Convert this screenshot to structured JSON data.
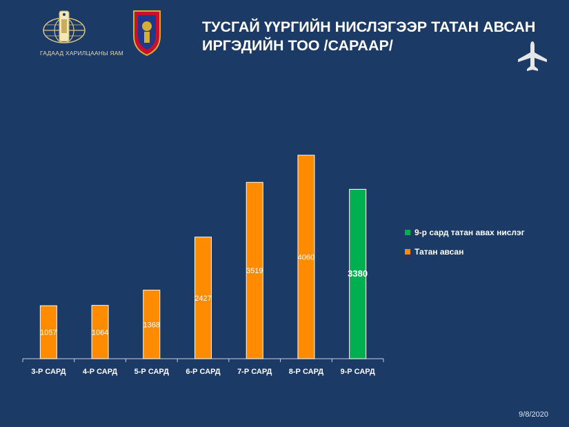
{
  "header": {
    "title_line1": "ТУСГАЙ ҮҮРГИЙН НИСЛЭГЭЭР ТАТАН АВСАН",
    "title_line2": "ИРГЭДИЙН ТОО /САРААР/",
    "ministry_caption": "ГАДААД ХАРИЛЦААНЫ ЯАМ"
  },
  "footer": {
    "date": "9/8/2020"
  },
  "colors": {
    "background": "#1b3a66",
    "orange": "#ff8c00",
    "green": "#00b050"
  },
  "chart_data": {
    "type": "bar",
    "title": "ТУСГАЙ ҮҮРГИЙН НИСЛЭГЭЭР ТАТАН АВСАН ИРГЭДИЙН ТОО /САРААР/",
    "categories": [
      "3-Р САРД",
      "4-Р САРД",
      "5-Р САРД",
      "6-Р САРД",
      "7-Р САРД",
      "8-Р САРД",
      "9-Р САРД"
    ],
    "series": [
      {
        "name": "Татан авсан",
        "color": "#ff8c00",
        "values": [
          1057,
          1064,
          1368,
          2427,
          3519,
          4060,
          null
        ]
      },
      {
        "name": "9-р сард татан авах нислэг",
        "color": "#00b050",
        "values": [
          null,
          null,
          null,
          null,
          null,
          null,
          3380
        ]
      }
    ],
    "ylim": [
      0,
      4060
    ],
    "grid": false,
    "legend_position": "right"
  }
}
